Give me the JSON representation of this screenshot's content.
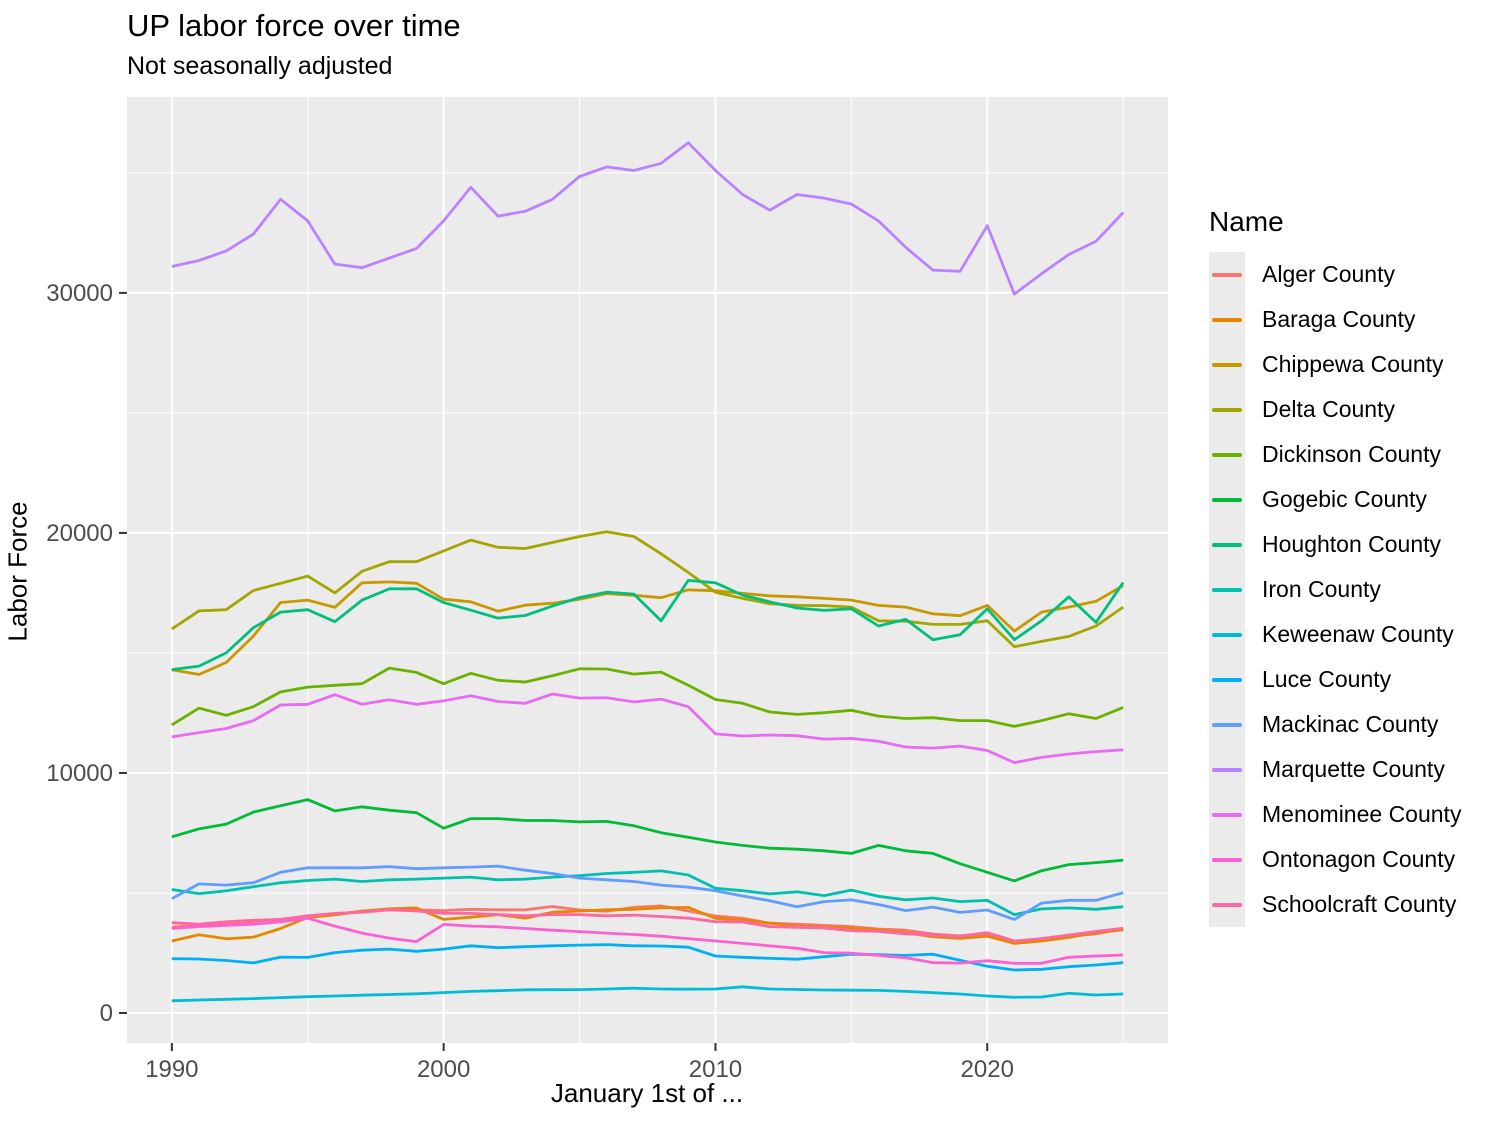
{
  "header": {
    "title": "UP labor force over time",
    "subtitle": "Not seasonally adjusted"
  },
  "chart_data": {
    "type": "line",
    "title": "UP labor force over time",
    "subtitle": "Not seasonally adjusted",
    "xlabel": "January 1st of ...",
    "ylabel": "Labor Force",
    "legend_title": "Name",
    "legend_position": "right",
    "grid": true,
    "panel_background": "#EBEBEB",
    "gridline_color": "#FFFFFF",
    "tick_label_color": "#4D4D4D",
    "x_ticks": [
      1990,
      2000,
      2010,
      2020
    ],
    "x_minor_ticks": [
      1995,
      2005,
      2015,
      2025
    ],
    "y_ticks": [
      0,
      10000,
      20000,
      30000
    ],
    "y_minor_ticks": [
      5000,
      15000,
      25000,
      35000
    ],
    "xlim": [
      1988.35,
      2026.65
    ],
    "ylim": [
      -1250,
      38160
    ],
    "x": [
      1990,
      1991,
      1992,
      1993,
      1994,
      1995,
      1996,
      1997,
      1998,
      1999,
      2000,
      2001,
      2002,
      2003,
      2004,
      2005,
      2006,
      2007,
      2008,
      2009,
      2010,
      2011,
      2012,
      2013,
      2014,
      2015,
      2016,
      2017,
      2018,
      2019,
      2020,
      2021,
      2022,
      2023,
      2024,
      2025
    ],
    "series": [
      {
        "name": "Alger County",
        "color": "#F8766D",
        "values": [
          3575,
          3650,
          3700,
          3820,
          3900,
          4000,
          4100,
          4250,
          4300,
          4300,
          4265,
          4320,
          4300,
          4300,
          4435,
          4290,
          4240,
          4400,
          4460,
          4250,
          4040,
          3945,
          3740,
          3700,
          3650,
          3600,
          3500,
          3450,
          3290,
          3210,
          3300,
          2950,
          3050,
          3200,
          3300,
          3500
        ]
      },
      {
        "name": "Baraga County",
        "color": "#E58700",
        "values": [
          3000,
          3260,
          3090,
          3160,
          3520,
          3980,
          4090,
          4240,
          4340,
          4380,
          3900,
          3990,
          4100,
          3950,
          4200,
          4250,
          4300,
          4320,
          4380,
          4400,
          3945,
          3875,
          3740,
          3625,
          3570,
          3540,
          3450,
          3350,
          3180,
          3110,
          3200,
          2900,
          3000,
          3150,
          3350,
          3460
        ]
      },
      {
        "name": "Chippewa County",
        "color": "#C99800",
        "values": [
          14300,
          14100,
          14600,
          15700,
          17100,
          17200,
          16900,
          17920,
          17960,
          17900,
          17240,
          17130,
          16740,
          16990,
          17070,
          17240,
          17470,
          17400,
          17300,
          17630,
          17590,
          17480,
          17380,
          17340,
          17270,
          17200,
          16980,
          16910,
          16630,
          16550,
          16980,
          15910,
          16700,
          16910,
          17150,
          17810
        ]
      },
      {
        "name": "Delta County",
        "color": "#A3A500",
        "values": [
          16000,
          16750,
          16800,
          17600,
          17900,
          18200,
          17500,
          18400,
          18800,
          18800,
          19250,
          19700,
          19400,
          19350,
          19600,
          19850,
          20050,
          19850,
          19130,
          18350,
          17530,
          17270,
          17050,
          16980,
          16970,
          16910,
          16340,
          16320,
          16190,
          16190,
          16340,
          15260,
          15480,
          15690,
          16120,
          16910
        ]
      },
      {
        "name": "Dickinson County",
        "color": "#6BB100",
        "values": [
          12000,
          12700,
          12400,
          12760,
          13375,
          13575,
          13650,
          13720,
          14370,
          14190,
          13720,
          14150,
          13860,
          13790,
          14050,
          14340,
          14330,
          14120,
          14200,
          13650,
          13060,
          12900,
          12540,
          12440,
          12510,
          12610,
          12370,
          12270,
          12300,
          12180,
          12180,
          11940,
          12180,
          12470,
          12270,
          12730
        ]
      },
      {
        "name": "Gogebic County",
        "color": "#00BA38",
        "values": [
          7340,
          7670,
          7870,
          8370,
          8630,
          8890,
          8420,
          8590,
          8450,
          8345,
          7700,
          8100,
          8100,
          8020,
          8020,
          7960,
          7980,
          7800,
          7510,
          7325,
          7125,
          6980,
          6865,
          6825,
          6755,
          6650,
          6980,
          6755,
          6650,
          6220,
          5860,
          5505,
          5930,
          6180,
          6265,
          6365
        ]
      },
      {
        "name": "Houghton County",
        "color": "#00BF7D",
        "values": [
          14300,
          14450,
          15000,
          16050,
          16700,
          16800,
          16300,
          17200,
          17670,
          17670,
          17100,
          16780,
          16450,
          16560,
          16950,
          17310,
          17530,
          17450,
          16340,
          18020,
          17920,
          17410,
          17130,
          16870,
          16770,
          16840,
          16120,
          16400,
          15550,
          15760,
          16840,
          15550,
          16340,
          17340,
          16270,
          17930
        ]
      },
      {
        "name": "Iron County",
        "color": "#00C0AF",
        "values": [
          5145,
          4975,
          5090,
          5260,
          5430,
          5520,
          5580,
          5480,
          5550,
          5580,
          5620,
          5660,
          5550,
          5580,
          5660,
          5720,
          5810,
          5860,
          5920,
          5750,
          5195,
          5095,
          4960,
          5050,
          4890,
          5120,
          4860,
          4715,
          4790,
          4640,
          4690,
          4100,
          4335,
          4380,
          4320,
          4430
        ]
      },
      {
        "name": "Keweenaw County",
        "color": "#00BCD8",
        "values": [
          510,
          540,
          570,
          600,
          640,
          680,
          710,
          740,
          770,
          800,
          850,
          900,
          930,
          965,
          970,
          975,
          1000,
          1035,
          1000,
          990,
          1000,
          1090,
          1000,
          980,
          960,
          950,
          940,
          900,
          845,
          790,
          710,
          655,
          665,
          820,
          750,
          790
        ]
      },
      {
        "name": "Luce County",
        "color": "#00B0F6",
        "values": [
          2260,
          2250,
          2185,
          2085,
          2330,
          2315,
          2515,
          2615,
          2660,
          2570,
          2660,
          2800,
          2720,
          2760,
          2800,
          2830,
          2850,
          2800,
          2790,
          2740,
          2375,
          2320,
          2280,
          2240,
          2345,
          2450,
          2430,
          2400,
          2450,
          2200,
          1950,
          1790,
          1820,
          1930,
          2000,
          2095
        ]
      },
      {
        "name": "Mackinac County",
        "color": "#619CFF",
        "values": [
          4760,
          5380,
          5330,
          5430,
          5860,
          6050,
          6050,
          6050,
          6100,
          6010,
          6050,
          6080,
          6120,
          5950,
          5810,
          5620,
          5550,
          5480,
          5330,
          5240,
          5095,
          4875,
          4680,
          4430,
          4640,
          4710,
          4520,
          4265,
          4410,
          4190,
          4290,
          3900,
          4580,
          4695,
          4695,
          5010
        ]
      },
      {
        "name": "Marquette County",
        "color": "#B983FF",
        "values": [
          31100,
          31350,
          31750,
          32450,
          33900,
          33000,
          31200,
          31050,
          31450,
          31850,
          33000,
          34400,
          33200,
          33400,
          33900,
          34850,
          35250,
          35100,
          35400,
          36250,
          35100,
          34100,
          33450,
          34100,
          33950,
          33700,
          33000,
          31900,
          30950,
          30900,
          32800,
          29950,
          30800,
          31600,
          32150,
          33350
        ]
      },
      {
        "name": "Menominee County",
        "color": "#E76BF3",
        "values": [
          11500,
          11680,
          11850,
          12180,
          12830,
          12860,
          13260,
          12860,
          13050,
          12860,
          13000,
          13220,
          12975,
          12900,
          13290,
          13120,
          13130,
          12960,
          13075,
          12760,
          11625,
          11540,
          11580,
          11550,
          11410,
          11440,
          11320,
          11080,
          11035,
          11120,
          10935,
          10430,
          10650,
          10790,
          10890,
          10965
        ]
      },
      {
        "name": "Ontonagon County",
        "color": "#FD61D1",
        "values": [
          3520,
          3600,
          3650,
          3700,
          3800,
          3950,
          3620,
          3330,
          3120,
          2975,
          3690,
          3620,
          3590,
          3520,
          3450,
          3390,
          3330,
          3270,
          3200,
          3100,
          3000,
          2900,
          2800,
          2695,
          2515,
          2490,
          2400,
          2300,
          2100,
          2080,
          2180,
          2070,
          2070,
          2320,
          2375,
          2415
        ]
      },
      {
        "name": "Schoolcraft County",
        "color": "#FF67A4",
        "values": [
          3760,
          3700,
          3800,
          3860,
          3900,
          4050,
          4150,
          4200,
          4300,
          4250,
          4150,
          4150,
          4100,
          4050,
          4100,
          4100,
          4050,
          4080,
          4020,
          3950,
          3805,
          3790,
          3600,
          3570,
          3540,
          3430,
          3400,
          3300,
          3250,
          3200,
          3350,
          3000,
          3100,
          3250,
          3400,
          3530
        ]
      }
    ]
  }
}
